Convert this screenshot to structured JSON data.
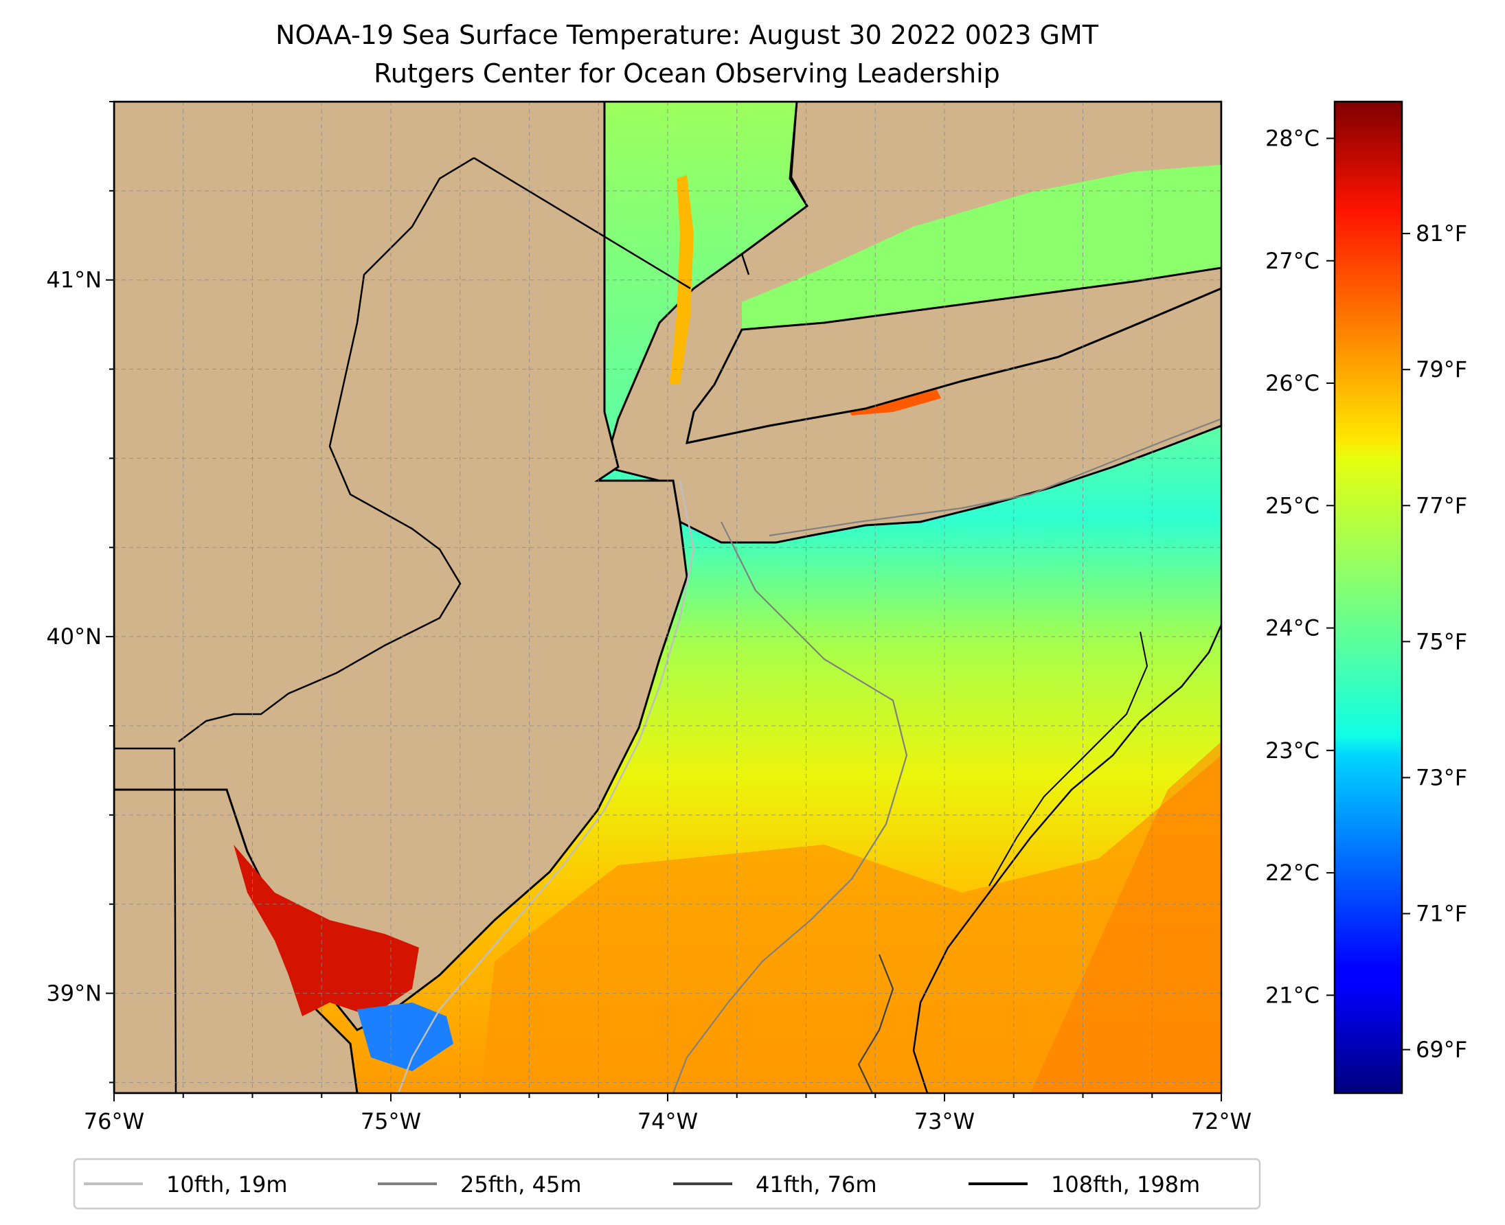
{
  "title": {
    "line1": "NOAA-19 Sea Surface Temperature: August 30 2022 0023 GMT",
    "line2": "Rutgers Center for Ocean Observing Leadership"
  },
  "map": {
    "lon_range": [
      -76,
      -72
    ],
    "lat_range": [
      38.72,
      41.5
    ],
    "lon_ticks": [
      {
        "value": -76,
        "label": "76°W"
      },
      {
        "value": -75,
        "label": "75°W"
      },
      {
        "value": -74,
        "label": "74°W"
      },
      {
        "value": -73,
        "label": "73°W"
      },
      {
        "value": -72,
        "label": "72°W"
      }
    ],
    "lat_ticks": [
      {
        "value": 39,
        "label": "39°N"
      },
      {
        "value": 40,
        "label": "40°N"
      },
      {
        "value": 41,
        "label": "41°N"
      }
    ],
    "gridlines": "dashed",
    "land_color": "#d2b48c"
  },
  "colorbar": {
    "cmap": "jet",
    "range_c": [
      20.2,
      28.3
    ],
    "celsius_ticks": [
      {
        "value": 21,
        "label": "21°C"
      },
      {
        "value": 22,
        "label": "22°C"
      },
      {
        "value": 23,
        "label": "23°C"
      },
      {
        "value": 24,
        "label": "24°C"
      },
      {
        "value": 25,
        "label": "25°C"
      },
      {
        "value": 26,
        "label": "26°C"
      },
      {
        "value": 27,
        "label": "27°C"
      },
      {
        "value": 28,
        "label": "28°C"
      }
    ],
    "fahrenheit_ticks": [
      {
        "value": 69,
        "label": "69°F"
      },
      {
        "value": 71,
        "label": "71°F"
      },
      {
        "value": 73,
        "label": "73°F"
      },
      {
        "value": 75,
        "label": "75°F"
      },
      {
        "value": 77,
        "label": "77°F"
      },
      {
        "value": 79,
        "label": "79°F"
      },
      {
        "value": 81,
        "label": "81°F"
      }
    ]
  },
  "legend": {
    "placement": "bottom",
    "entries": [
      {
        "label": "10fth, 19m",
        "color": "#c0c0c0"
      },
      {
        "label": "25fth, 45m",
        "color": "#808080"
      },
      {
        "label": "41fth, 76m",
        "color": "#404040"
      },
      {
        "label": "108fth, 198m",
        "color": "#000000"
      }
    ]
  }
}
